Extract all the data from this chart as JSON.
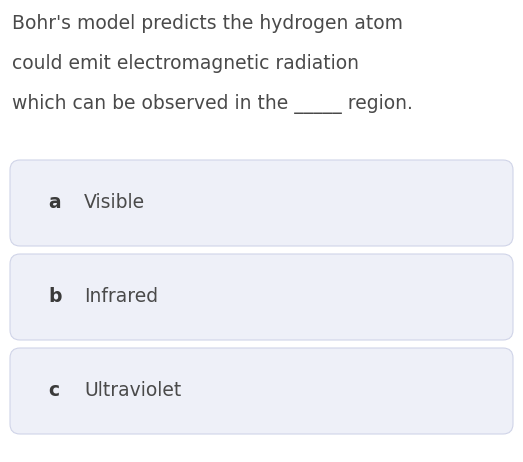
{
  "background_color": "#ffffff",
  "question_lines": [
    "Bohr's model predicts the hydrogen atom",
    "could emit electromagnetic radiation",
    "which can be observed in the _____ region."
  ],
  "question_color": "#4a4a4a",
  "question_fontsize": 13.5,
  "options": [
    {
      "label": "a",
      "text": "Visible"
    },
    {
      "label": "b",
      "text": "Infrared"
    },
    {
      "label": "c",
      "text": "Ultraviolet"
    }
  ],
  "option_box_color": "#eef0f8",
  "option_box_border_color": "#d0d4e8",
  "option_label_color": "#3a3a3a",
  "option_text_color": "#4a4a4a",
  "option_label_fontsize": 13.5,
  "option_text_fontsize": 13.5
}
